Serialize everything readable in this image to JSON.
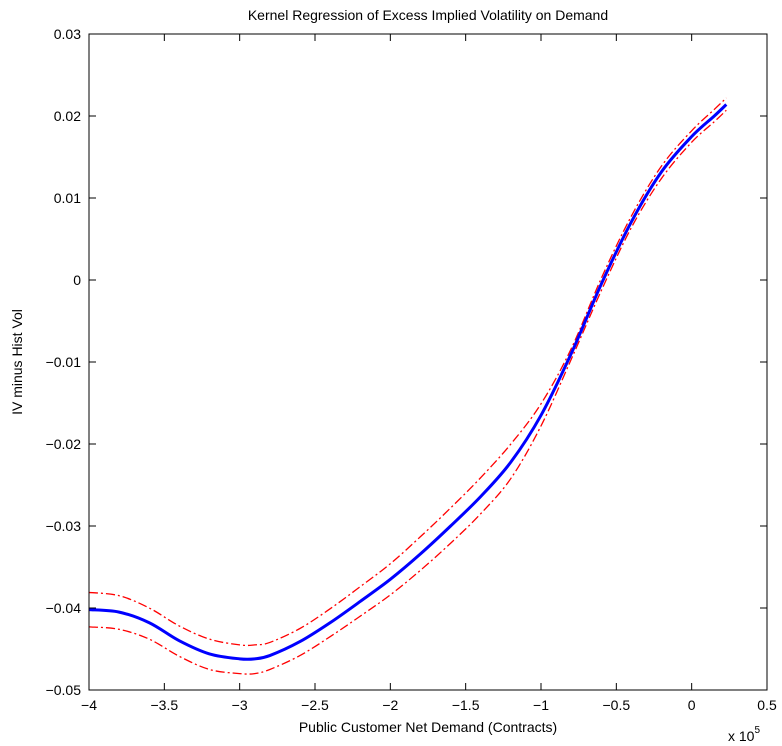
{
  "chart_data": {
    "type": "line",
    "title": "Kernel Regression of Excess Implied Volatility on Demand",
    "xlabel": "Public Customer Net Demand (Contracts)",
    "ylabel": "IV minus Hist Vol",
    "x_multiplier_label": "x 10",
    "x_multiplier_exponent": "5",
    "xlim": [
      -4,
      0.5
    ],
    "ylim": [
      -0.05,
      0.03
    ],
    "x_ticks": [
      -4,
      -3.5,
      -3,
      -2.5,
      -2,
      -1.5,
      -1,
      -0.5,
      0,
      0.5
    ],
    "x_tick_labels": [
      "−4",
      "−3.5",
      "−3",
      "−2.5",
      "−2",
      "−1.5",
      "−1",
      "−0.5",
      "0",
      "0.5"
    ],
    "y_ticks": [
      -0.05,
      -0.04,
      -0.03,
      -0.02,
      -0.01,
      0,
      0.01,
      0.02,
      0.03
    ],
    "y_tick_labels": [
      "−0.05",
      "−0.04",
      "−0.03",
      "−0.02",
      "−0.01",
      "0",
      "0.01",
      "0.02",
      "0.03"
    ],
    "grid": false,
    "x": [
      -4.0,
      -3.8,
      -3.6,
      -3.4,
      -3.2,
      -3.0,
      -2.9,
      -2.8,
      -2.6,
      -2.4,
      -2.2,
      -2.0,
      -1.8,
      -1.6,
      -1.4,
      -1.2,
      -1.0,
      -0.8,
      -0.6,
      -0.4,
      -0.2,
      0.0,
      0.15,
      0.23
    ],
    "series": [
      {
        "color": "#0000ff",
        "style": "solid",
        "values": [
          -0.0402,
          -0.0405,
          -0.0418,
          -0.044,
          -0.0456,
          -0.0462,
          -0.0462,
          -0.0458,
          -0.0441,
          -0.0418,
          -0.0392,
          -0.0365,
          -0.0334,
          -0.03,
          -0.0264,
          -0.0222,
          -0.0165,
          -0.009,
          -0.0005,
          0.0071,
          0.0132,
          0.0175,
          0.02,
          0.0214
        ]
      },
      {
        "color": "#ff0000",
        "style": "dash-dot",
        "values": [
          -0.0381,
          -0.0385,
          -0.04,
          -0.0422,
          -0.0438,
          -0.0445,
          -0.0445,
          -0.0442,
          -0.0425,
          -0.0401,
          -0.0374,
          -0.0346,
          -0.0313,
          -0.0278,
          -0.0241,
          -0.02,
          -0.0151,
          -0.0084,
          0.0002,
          0.0078,
          0.0139,
          0.0182,
          0.0208,
          0.0222
        ]
      },
      {
        "color": "#ff0000",
        "style": "dash-dot",
        "values": [
          -0.0423,
          -0.0426,
          -0.0438,
          -0.0459,
          -0.0475,
          -0.048,
          -0.048,
          -0.0475,
          -0.0458,
          -0.0435,
          -0.041,
          -0.0384,
          -0.0354,
          -0.0321,
          -0.0285,
          -0.0242,
          -0.0178,
          -0.0097,
          -0.0013,
          0.0064,
          0.0124,
          0.0168,
          0.0193,
          0.0207
        ]
      }
    ]
  }
}
